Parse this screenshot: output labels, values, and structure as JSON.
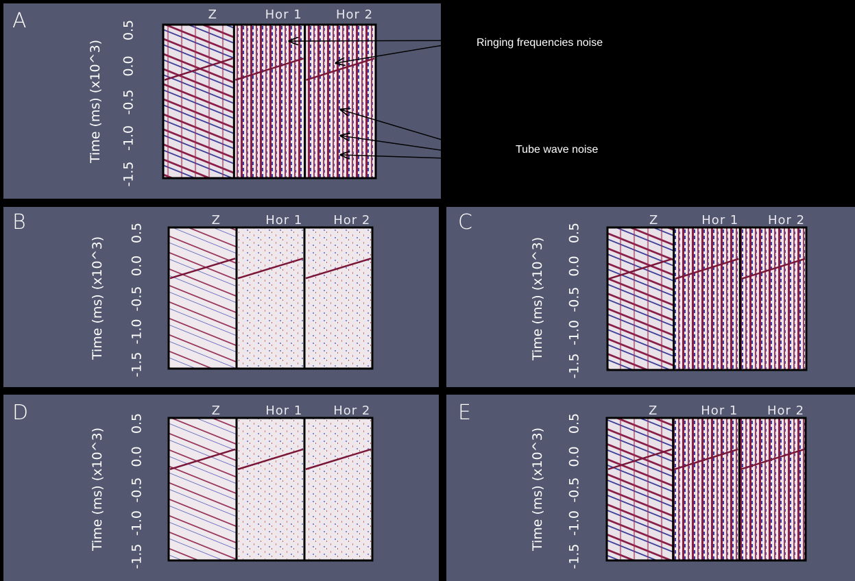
{
  "panels": [
    {
      "label": "A",
      "y_label": "Time (ms) (x10^3)",
      "y_ticks": [
        "0.5",
        "0.0",
        "-0.5",
        "-1.0",
        "-1.5"
      ],
      "columns": [
        "Z",
        "Hor 1",
        "Hor 2"
      ]
    },
    {
      "label": "B",
      "y_label": "Time (ms) (x10^3)",
      "y_ticks": [
        "0.5",
        "0.0",
        "-0.5",
        "-1.0",
        "-1.5"
      ],
      "columns": [
        "Z",
        "Hor 1",
        "Hor 2"
      ]
    },
    {
      "label": "C",
      "y_label": "Time (ms) (x10^3)",
      "y_ticks": [
        "0.5",
        "0.0",
        "-0.5",
        "-1.0",
        "-1.5"
      ],
      "columns": [
        "Z",
        "Hor 1",
        "Hor 2"
      ]
    },
    {
      "label": "D",
      "y_label": "Time (ms) (x10^3)",
      "y_ticks": [
        "0.5",
        "0.0",
        "-0.5",
        "-1.0",
        "-1.5"
      ],
      "columns": [
        "Z",
        "Hor 1",
        "Hor 2"
      ]
    },
    {
      "label": "E",
      "y_label": "Time (ms) (x10^3)",
      "y_ticks": [
        "0.5",
        "0.0",
        "-0.5",
        "-1.0",
        "-1.5"
      ],
      "columns": [
        "Z",
        "Hor 1",
        "Hor 2"
      ]
    }
  ],
  "annotations": [
    "Ringing frequencies noise",
    "Tube wave noise"
  ]
}
